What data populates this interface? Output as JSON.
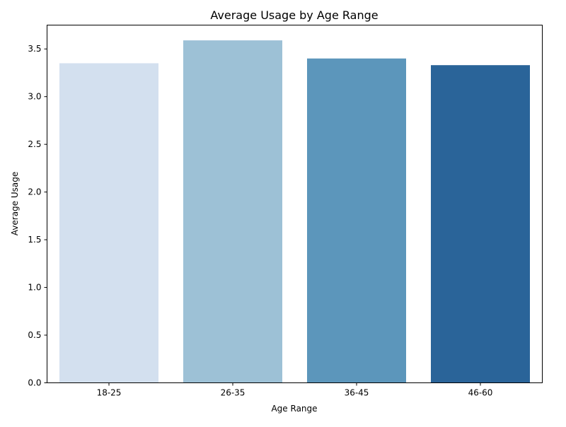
{
  "chart_data": {
    "type": "bar",
    "title": "Average Usage by Age Range",
    "xlabel": "Age Range",
    "ylabel": "Average Usage",
    "categories": [
      "18-25",
      "26-35",
      "36-45",
      "46-60"
    ],
    "values": [
      3.35,
      3.59,
      3.4,
      3.33
    ],
    "colors": [
      "#d3e0ef",
      "#9dc1d6",
      "#5c96bb",
      "#2a6499"
    ],
    "ylim": [
      0,
      3.75
    ],
    "yticks": [
      "0.0",
      "0.5",
      "1.0",
      "1.5",
      "2.0",
      "2.5",
      "3.0",
      "3.5"
    ],
    "grid": false,
    "legend": "none"
  }
}
